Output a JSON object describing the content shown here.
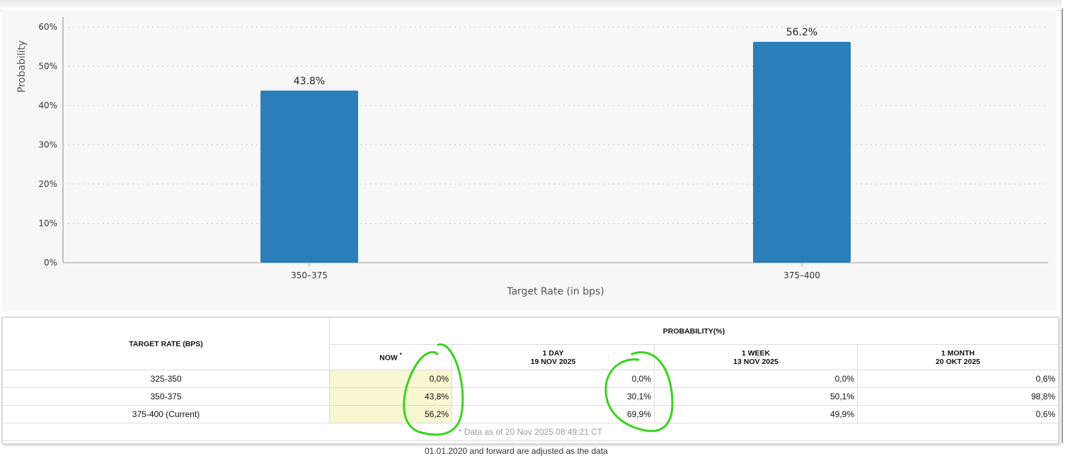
{
  "chart_data": {
    "type": "bar",
    "categories": [
      "350–375",
      "375–400"
    ],
    "values": [
      43.8,
      56.2
    ],
    "value_labels": [
      "43.8%",
      "56.2%"
    ],
    "title": "",
    "xlabel": "Target Rate (in bps)",
    "ylabel": "Probability",
    "ylim": [
      0,
      60
    ],
    "yticks": [
      "0%",
      "10%",
      "20%",
      "30%",
      "40%",
      "50%",
      "60%"
    ],
    "grid": true,
    "bar_color": "#2a7fba"
  },
  "table": {
    "rate_header": "TARGET RATE (BPS)",
    "prob_header": "PROBABILITY(%)",
    "columns": [
      {
        "label": "NOW",
        "date": "",
        "marker": "*"
      },
      {
        "label": "1 DAY",
        "date": "19 NOV 2025"
      },
      {
        "label": "1 WEEK",
        "date": "13 NOV 2025"
      },
      {
        "label": "1 MONTH",
        "date": "20 OKT 2025"
      }
    ],
    "rows": [
      {
        "rate": "325-350",
        "values": [
          "0,0%",
          "0,0%",
          "0,0%",
          "0,6%"
        ]
      },
      {
        "rate": "350-375",
        "values": [
          "43,8%",
          "30,1%",
          "50,1%",
          "98,8%"
        ]
      },
      {
        "rate": "375-400 (Current)",
        "values": [
          "56,2%",
          "69,9%",
          "49,9%",
          "0,6%"
        ]
      }
    ],
    "footnote": "* Data as of 20 Nov 2025 08:49:21 CT"
  },
  "cut_text": "01.01.2020 and forward are adjusted as the data",
  "annotation_color": "#39d31c"
}
